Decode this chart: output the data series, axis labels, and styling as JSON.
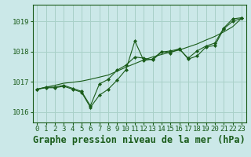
{
  "title": "Graphe pression niveau de la mer (hPa)",
  "background_color": "#cbe8e8",
  "grid_color": "#a8d0c8",
  "line_color": "#1a5c1a",
  "marker_color": "#1a5c1a",
  "xlim": [
    -0.5,
    23.5
  ],
  "ylim": [
    1015.65,
    1019.55
  ],
  "yticks": [
    1016,
    1017,
    1018,
    1019
  ],
  "xticks": [
    0,
    1,
    2,
    3,
    4,
    5,
    6,
    7,
    8,
    9,
    10,
    11,
    12,
    13,
    14,
    15,
    16,
    17,
    18,
    19,
    20,
    21,
    22,
    23
  ],
  "series_volatile": [
    1016.75,
    1016.8,
    1016.8,
    1016.85,
    1016.75,
    1016.65,
    1016.15,
    1016.55,
    1016.75,
    1017.05,
    1017.4,
    1018.35,
    1017.7,
    1017.75,
    1018.0,
    1017.95,
    1018.1,
    1017.75,
    1017.85,
    1018.15,
    1018.2,
    1018.75,
    1019.0,
    1019.1
  ],
  "series_smooth": [
    1016.75,
    1016.82,
    1016.82,
    1016.88,
    1016.78,
    1016.68,
    1016.2,
    1016.92,
    1017.08,
    1017.38,
    1017.55,
    1017.82,
    1017.78,
    1017.72,
    1017.98,
    1018.02,
    1018.08,
    1017.78,
    1018.02,
    1018.18,
    1018.28,
    1018.78,
    1019.08,
    1019.12
  ],
  "series_trend": [
    1016.75,
    1016.82,
    1016.88,
    1016.95,
    1016.98,
    1017.02,
    1017.08,
    1017.15,
    1017.22,
    1017.35,
    1017.48,
    1017.6,
    1017.72,
    1017.82,
    1017.9,
    1017.98,
    1018.05,
    1018.15,
    1018.25,
    1018.38,
    1018.5,
    1018.65,
    1018.82,
    1019.1
  ],
  "title_fontsize": 8.5,
  "tick_fontsize": 6.5
}
